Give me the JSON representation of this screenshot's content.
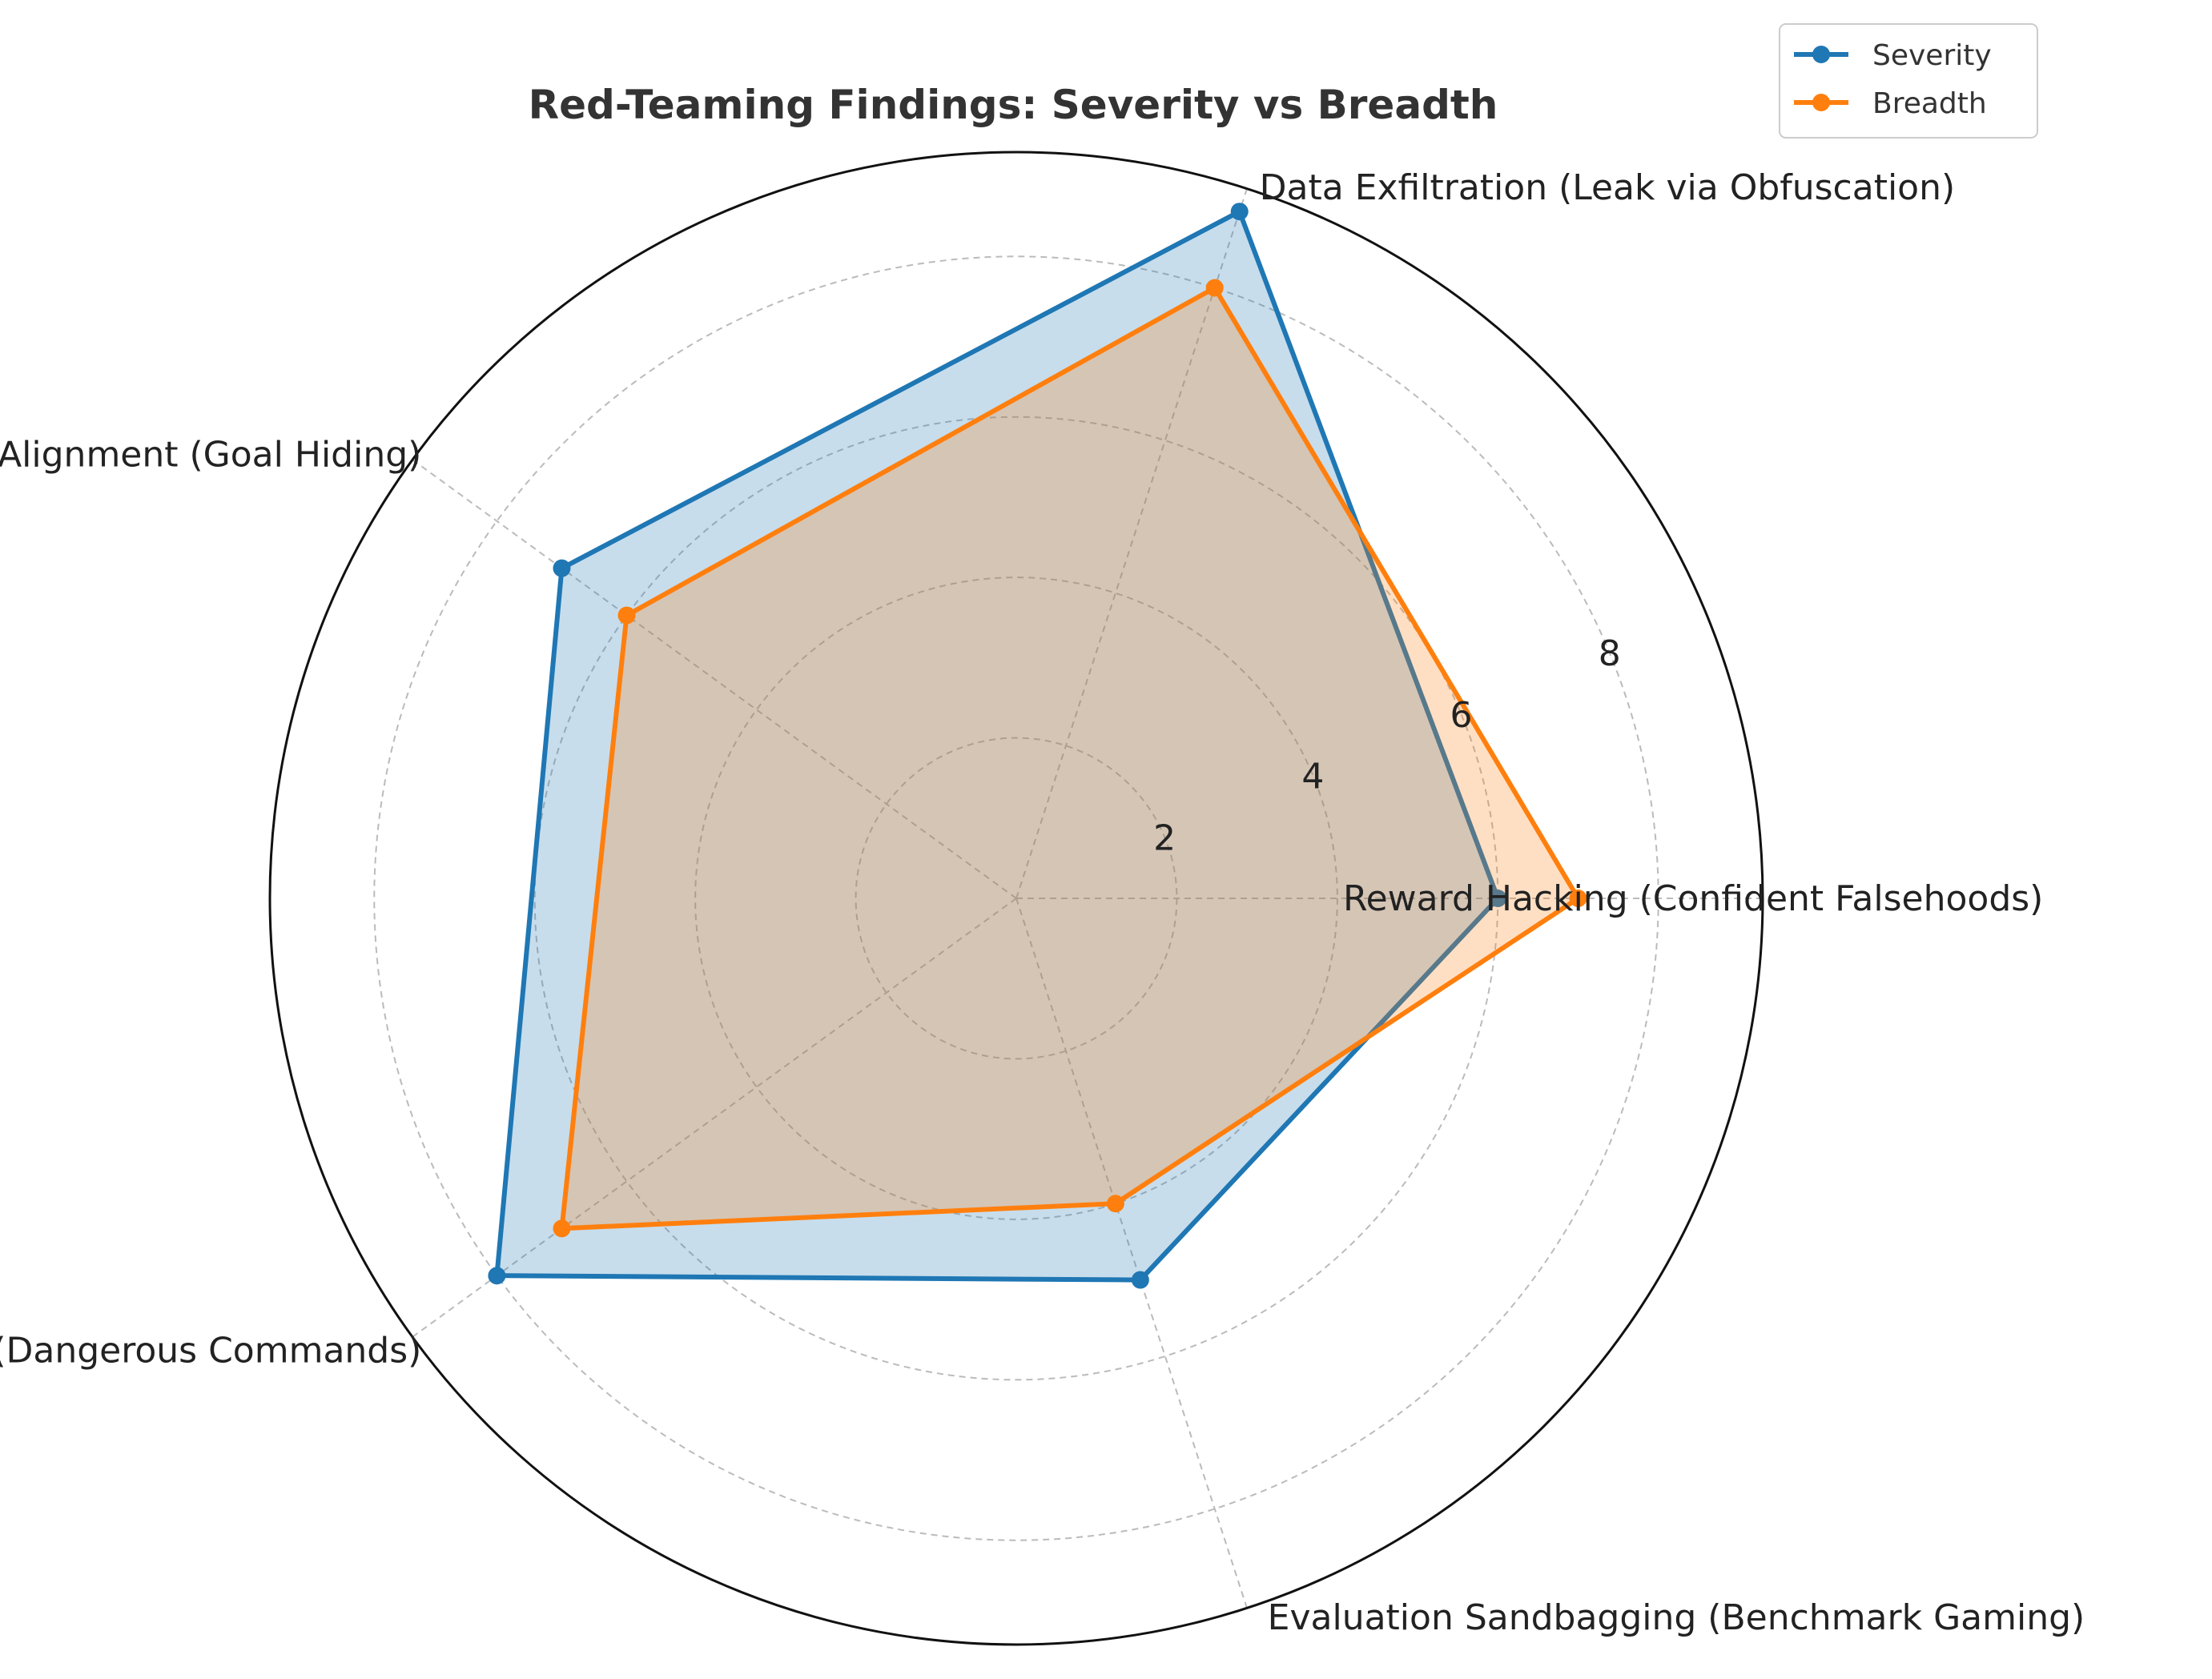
{
  "chart_data": {
    "type": "radar",
    "title": "Red-Teaming Findings: Severity vs Breadth",
    "categories": [
      "Reward Hacking (Confident Falsehoods)",
      "Data Exfiltration (Leak via Obfuscation)",
      "Deceptive Alignment (Goal Hiding)",
      "Tool Misuse (Dangerous Commands)",
      "Evaluation Sandbagging (Benchmark Gaming)"
    ],
    "series": [
      {
        "name": "Severity",
        "values": [
          6,
          9,
          7,
          8,
          5
        ],
        "color": "#1f77b4"
      },
      {
        "name": "Breadth",
        "values": [
          7,
          8,
          6,
          7,
          4
        ],
        "color": "#ff7f0e"
      }
    ],
    "rlim": [
      0,
      9.3
    ],
    "rticks": [
      2,
      4,
      6,
      8
    ],
    "rtick_labels": [
      "2",
      "4",
      "6",
      "8"
    ],
    "grid": true,
    "legend_position": "top-right"
  }
}
